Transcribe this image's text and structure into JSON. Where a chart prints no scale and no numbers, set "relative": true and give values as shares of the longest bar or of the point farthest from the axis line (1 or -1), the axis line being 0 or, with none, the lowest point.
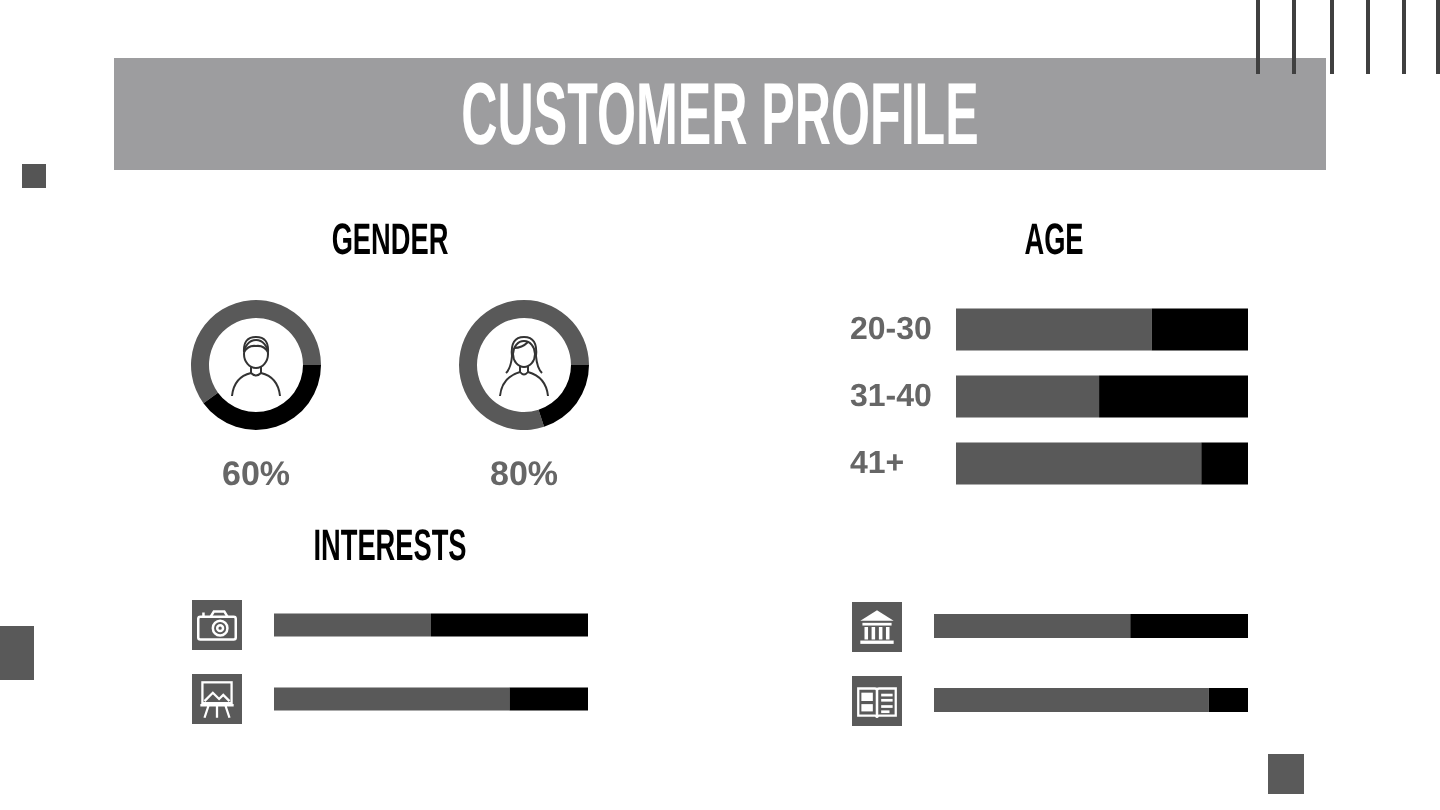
{
  "chart_data": [
    {
      "type": "other",
      "title": "CUSTOMER PROFILE"
    },
    {
      "type": "donut",
      "title": "GENDER",
      "categories": [
        null,
        null
      ],
      "values": [
        60,
        40
      ],
      "colors": [
        "#595959",
        "#000000"
      ],
      "annotations": [
        "60%"
      ]
    },
    {
      "type": "donut",
      "categories": [
        null,
        null
      ],
      "values": [
        80,
        20
      ],
      "colors": [
        "#595959",
        "#000000"
      ],
      "annotations": [
        "80%"
      ]
    },
    {
      "type": "bar",
      "title": "AGE",
      "orientation": "horizontal",
      "stacked": true,
      "relative": true,
      "categories": [
        "20-30",
        "31-40",
        "41+"
      ],
      "series": [
        {
          "color": "#595959",
          "values": [
            0.67,
            0.49,
            0.84
          ]
        },
        {
          "color": "#000000",
          "values": [
            0.33,
            0.51,
            0.16
          ]
        }
      ]
    },
    {
      "type": "bar",
      "title": "INTERESTS",
      "orientation": "horizontal",
      "stacked": true,
      "relative": true,
      "categories": [
        null,
        null
      ],
      "series": [
        {
          "color": "#595959",
          "values": [
            0.5,
            0.75
          ]
        },
        {
          "color": "#000000",
          "values": [
            0.5,
            0.25
          ]
        }
      ]
    },
    {
      "type": "bar",
      "orientation": "horizontal",
      "stacked": true,
      "relative": true,
      "categories": [
        null,
        null
      ],
      "series": [
        {
          "color": "#595959",
          "values": [
            0.625,
            0.875
          ]
        },
        {
          "color": "#000000",
          "values": [
            0.375,
            0.125
          ]
        }
      ]
    }
  ]
}
